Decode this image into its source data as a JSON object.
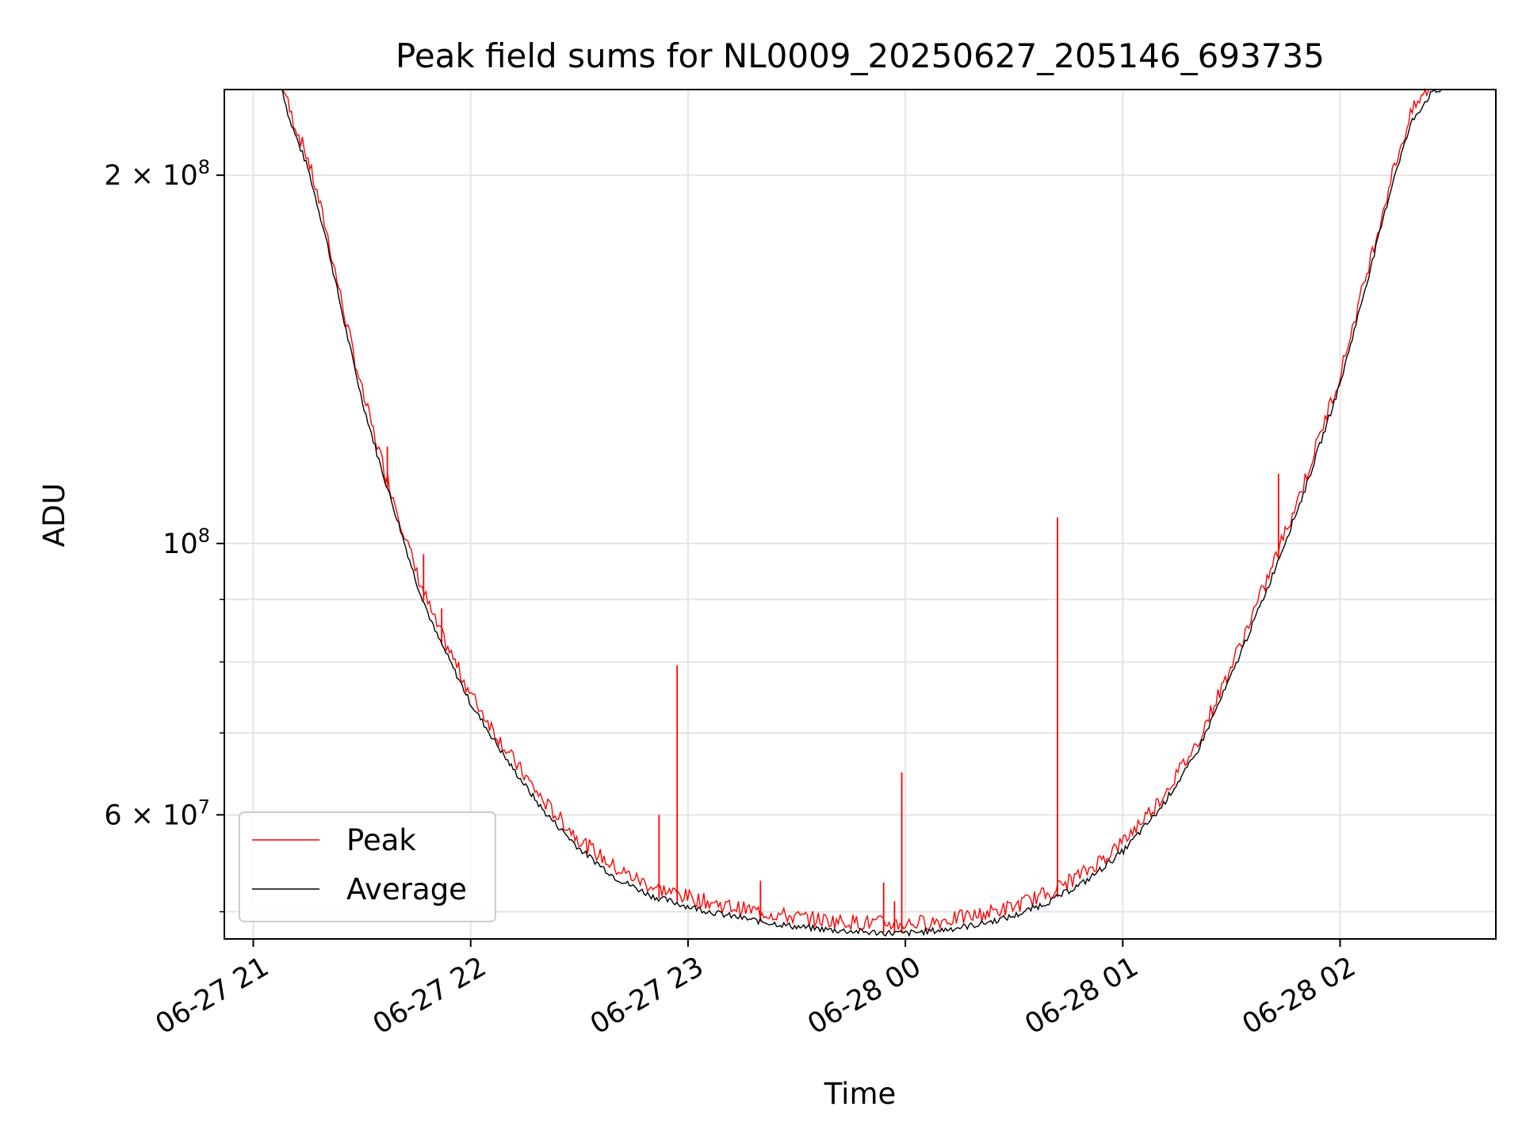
{
  "chart_data": {
    "type": "line",
    "title": "Peak field sums for NL0009_20250627_205146_693735",
    "xlabel": "Time",
    "ylabel": "ADU",
    "y_scale": "log",
    "ylim": [
      47500000,
      235000000
    ],
    "xlim": [
      "2025-06-27 20:52",
      "2025-06-28 02:43"
    ],
    "grid": true,
    "legend": "lower-left",
    "x_ticks": [
      {
        "t": "2025-06-27 21:00",
        "label": "06-27 21"
      },
      {
        "t": "2025-06-27 22:00",
        "label": "06-27 22"
      },
      {
        "t": "2025-06-27 23:00",
        "label": "06-27 23"
      },
      {
        "t": "2025-06-28 00:00",
        "label": "06-28 00"
      },
      {
        "t": "2025-06-28 01:00",
        "label": "06-28 01"
      },
      {
        "t": "2025-06-28 02:00",
        "label": "06-28 02"
      }
    ],
    "y_major_ticks": [
      {
        "v": 100000000,
        "base": "10",
        "exp": "8",
        "coef": ""
      },
      {
        "v": 200000000,
        "base": "10",
        "exp": "8",
        "coef": "2 × "
      },
      {
        "v": 60000000,
        "base": "10",
        "exp": "7",
        "coef": "6 × "
      }
    ],
    "y_minor_grid": [
      50000000,
      70000000,
      80000000,
      90000000
    ],
    "series": [
      {
        "name": "Average",
        "color": "#000000",
        "points": [
          [
            "2025-06-27 20:52",
            235000000
          ],
          [
            "2025-06-27 21:08",
            235000000
          ],
          [
            "2025-06-27 21:10",
            222000000
          ],
          [
            "2025-06-27 21:15",
            203000000
          ],
          [
            "2025-06-27 21:20",
            178000000
          ],
          [
            "2025-06-27 21:25",
            152000000
          ],
          [
            "2025-06-27 21:30",
            131000000
          ],
          [
            "2025-06-27 21:35",
            116000000
          ],
          [
            "2025-06-27 21:40",
            104000000
          ],
          [
            "2025-06-27 21:45",
            93000000
          ],
          [
            "2025-06-27 21:50",
            85000000
          ],
          [
            "2025-06-27 22:00",
            74000000
          ],
          [
            "2025-06-27 22:10",
            66500000
          ],
          [
            "2025-06-27 22:20",
            60500000
          ],
          [
            "2025-06-27 22:30",
            56300000
          ],
          [
            "2025-06-27 22:40",
            53300000
          ],
          [
            "2025-06-27 22:50",
            51500000
          ],
          [
            "2025-06-27 23:00",
            50500000
          ],
          [
            "2025-06-27 23:10",
            49700000
          ],
          [
            "2025-06-27 23:20",
            49100000
          ],
          [
            "2025-06-27 23:30",
            48600000
          ],
          [
            "2025-06-27 23:40",
            48300000
          ],
          [
            "2025-06-27 23:50",
            48100000
          ],
          [
            "2025-06-28 00:00",
            48000000
          ],
          [
            "2025-06-28 00:10",
            48300000
          ],
          [
            "2025-06-28 00:20",
            48800000
          ],
          [
            "2025-06-28 00:30",
            49600000
          ],
          [
            "2025-06-28 00:40",
            51000000
          ],
          [
            "2025-06-28 00:50",
            53000000
          ],
          [
            "2025-06-28 01:00",
            56000000
          ],
          [
            "2025-06-28 01:10",
            60500000
          ],
          [
            "2025-06-28 01:20",
            67000000
          ],
          [
            "2025-06-28 01:30",
            78000000
          ],
          [
            "2025-06-28 01:40",
            92000000
          ],
          [
            "2025-06-28 01:50",
            110000000
          ],
          [
            "2025-06-28 02:00",
            135000000
          ],
          [
            "2025-06-28 02:10",
            175000000
          ],
          [
            "2025-06-28 02:15",
            200000000
          ],
          [
            "2025-06-28 02:20",
            222000000
          ],
          [
            "2025-06-28 02:25",
            233000000
          ],
          [
            "2025-06-28 02:28",
            235000000
          ],
          [
            "2025-06-28 02:43",
            235000000
          ]
        ]
      },
      {
        "name": "Peak",
        "color": "#ff0000",
        "spikes": [
          [
            "2025-06-27 21:37",
            120000000
          ],
          [
            "2025-06-27 21:47",
            98000000
          ],
          [
            "2025-06-27 21:52",
            88500000
          ],
          [
            "2025-06-27 22:52",
            60000000
          ],
          [
            "2025-06-27 22:57",
            79500000
          ],
          [
            "2025-06-27 23:20",
            53000000
          ],
          [
            "2025-06-27 23:54",
            52800000
          ],
          [
            "2025-06-27 23:57",
            51000000
          ],
          [
            "2025-06-27 23:59",
            65000000
          ],
          [
            "2025-06-28 00:42",
            105000000
          ],
          [
            "2025-06-28 01:43",
            114000000
          ]
        ]
      }
    ]
  }
}
